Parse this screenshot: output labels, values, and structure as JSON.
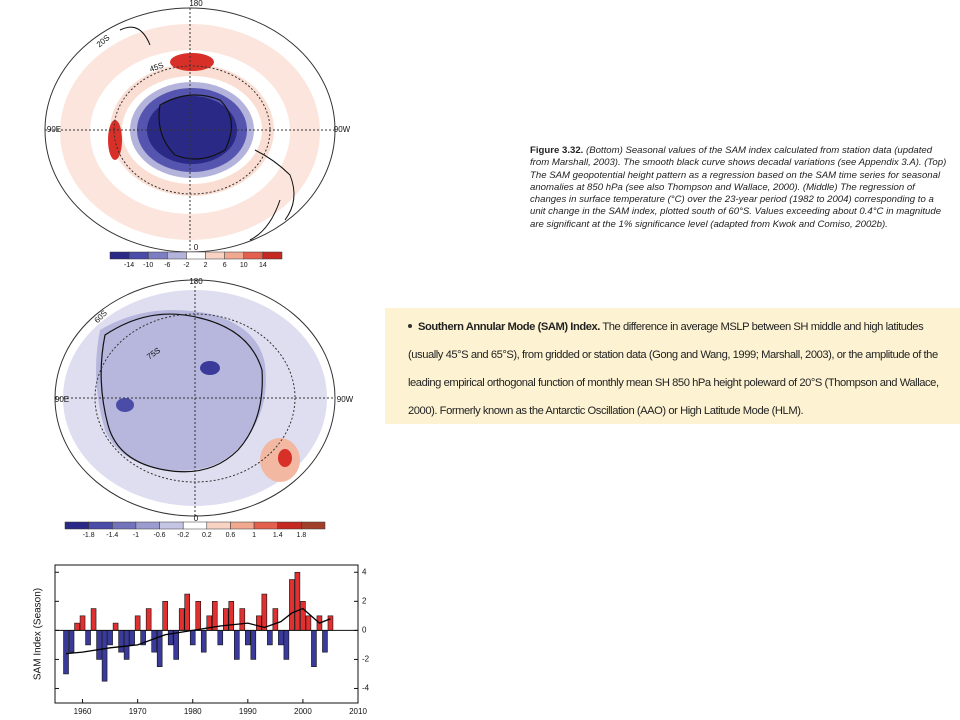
{
  "top_map": {
    "labels": {
      "top": "180",
      "left": "90E",
      "right": "90W",
      "bottom": "0",
      "lat1": "20S",
      "lat2": "45S"
    },
    "colorbar": {
      "ticks": [
        "-14",
        "-10",
        "-6",
        "-2",
        "2",
        "6",
        "10",
        "14"
      ],
      "colors": [
        "#2a2a86",
        "#4b4ba8",
        "#7d7dc2",
        "#b3b3dc",
        "#ffffff",
        "#f8d3c4",
        "#f0a88f",
        "#e3604e",
        "#c42a22"
      ]
    }
  },
  "middle_map": {
    "labels": {
      "top": "180",
      "left": "90E",
      "right": "90W",
      "bottom": "0",
      "lat1": "60S",
      "lat2": "75S"
    },
    "colorbar": {
      "ticks": [
        "-1.8",
        "-1.4",
        "-1",
        "-0.6",
        "-0.2",
        "0.2",
        "0.6",
        "1",
        "1.4",
        "1.8"
      ],
      "colors": [
        "#2a2a86",
        "#4b4ba8",
        "#7373bc",
        "#9c9cd0",
        "#c4c4e4",
        "#ffffff",
        "#f8d3c4",
        "#f0a88f",
        "#e3604e",
        "#c42a22",
        "#a0402a"
      ]
    }
  },
  "chart_data": {
    "type": "bar",
    "ylabel": "SAM Index (Season)",
    "x": [
      1957,
      1958,
      1959,
      1960,
      1961,
      1962,
      1963,
      1964,
      1965,
      1966,
      1967,
      1968,
      1969,
      1970,
      1971,
      1972,
      1973,
      1974,
      1975,
      1976,
      1977,
      1978,
      1979,
      1980,
      1981,
      1982,
      1983,
      1984,
      1985,
      1986,
      1987,
      1988,
      1989,
      1990,
      1991,
      1992,
      1993,
      1994,
      1995,
      1996,
      1997,
      1998,
      1999,
      2000,
      2001,
      2002,
      2003,
      2004,
      2005
    ],
    "values": [
      -3,
      -1.5,
      0.5,
      1,
      -1,
      1.5,
      -2,
      -3.5,
      -1,
      0.5,
      -1.5,
      -2,
      -1,
      1,
      -1,
      1.5,
      -1.5,
      -2.5,
      2,
      -1,
      -2,
      1.5,
      2.5,
      -1,
      2,
      -1.5,
      1,
      2,
      -1,
      1.5,
      2,
      -2,
      1.5,
      -1,
      -2,
      1,
      2.5,
      -1,
      1.5,
      -1,
      -2,
      3.5,
      4,
      2,
      1,
      -2.5,
      1,
      -1.5,
      1
    ],
    "positive_color": "#e03030",
    "negative_color": "#3a3a9a",
    "series": [
      {
        "color": "#000000",
        "x": [
          1957,
          1960,
          1965,
          1970,
          1975,
          1980,
          1985,
          1990,
          1993,
          1996,
          1998,
          2000,
          2003,
          2005
        ],
        "values": [
          -1.6,
          -1.5,
          -1.2,
          -1,
          -0.3,
          0,
          0.3,
          0.5,
          0.2,
          0.6,
          1.2,
          1.5,
          0.5,
          0.8
        ]
      }
    ],
    "xlim": [
      1955,
      2010
    ],
    "ylim": [
      -5,
      4.5
    ],
    "xticks": [
      1960,
      1970,
      1980,
      1990,
      2000,
      2010
    ],
    "yticks": [
      -4,
      -2,
      0,
      2,
      4
    ]
  },
  "caption": {
    "label": "Figure 3.32.",
    "text": "(Bottom) Seasonal values of the SAM index calculated from station data (updated from Marshall, 2003). The smooth black curve shows decadal variations (see Appendix 3.A). (Top) The SAM geopotential height pattern as a regression based on the SAM time series for seasonal anomalies at 850 hPa (see also Thompson and Wallace, 2000). (Middle) The regression of changes in surface temperature (°C) over the 23-year period (1982 to 2004) corresponding to a unit change in the SAM index, plotted south of 60°S. Values exceeding about 0.4°C in magnitude are significant at the 1% significance level (adapted from Kwok and Comiso, 2002b)."
  },
  "definition": {
    "term": "Southern Annular Mode (SAM) Index.",
    "text": "The difference in average MSLP between SH middle and high latitudes (usually 45°S and 65°S), from gridded or station data (Gong and Wang, 1999; Marshall, 2003), or the amplitude of the leading empirical orthogonal function of monthly mean SH 850 hPa height poleward of 20°S (Thompson and Wallace, 2000). Formerly known as the Antarctic Oscillation (AAO) or High Latitude Mode (HLM)."
  }
}
